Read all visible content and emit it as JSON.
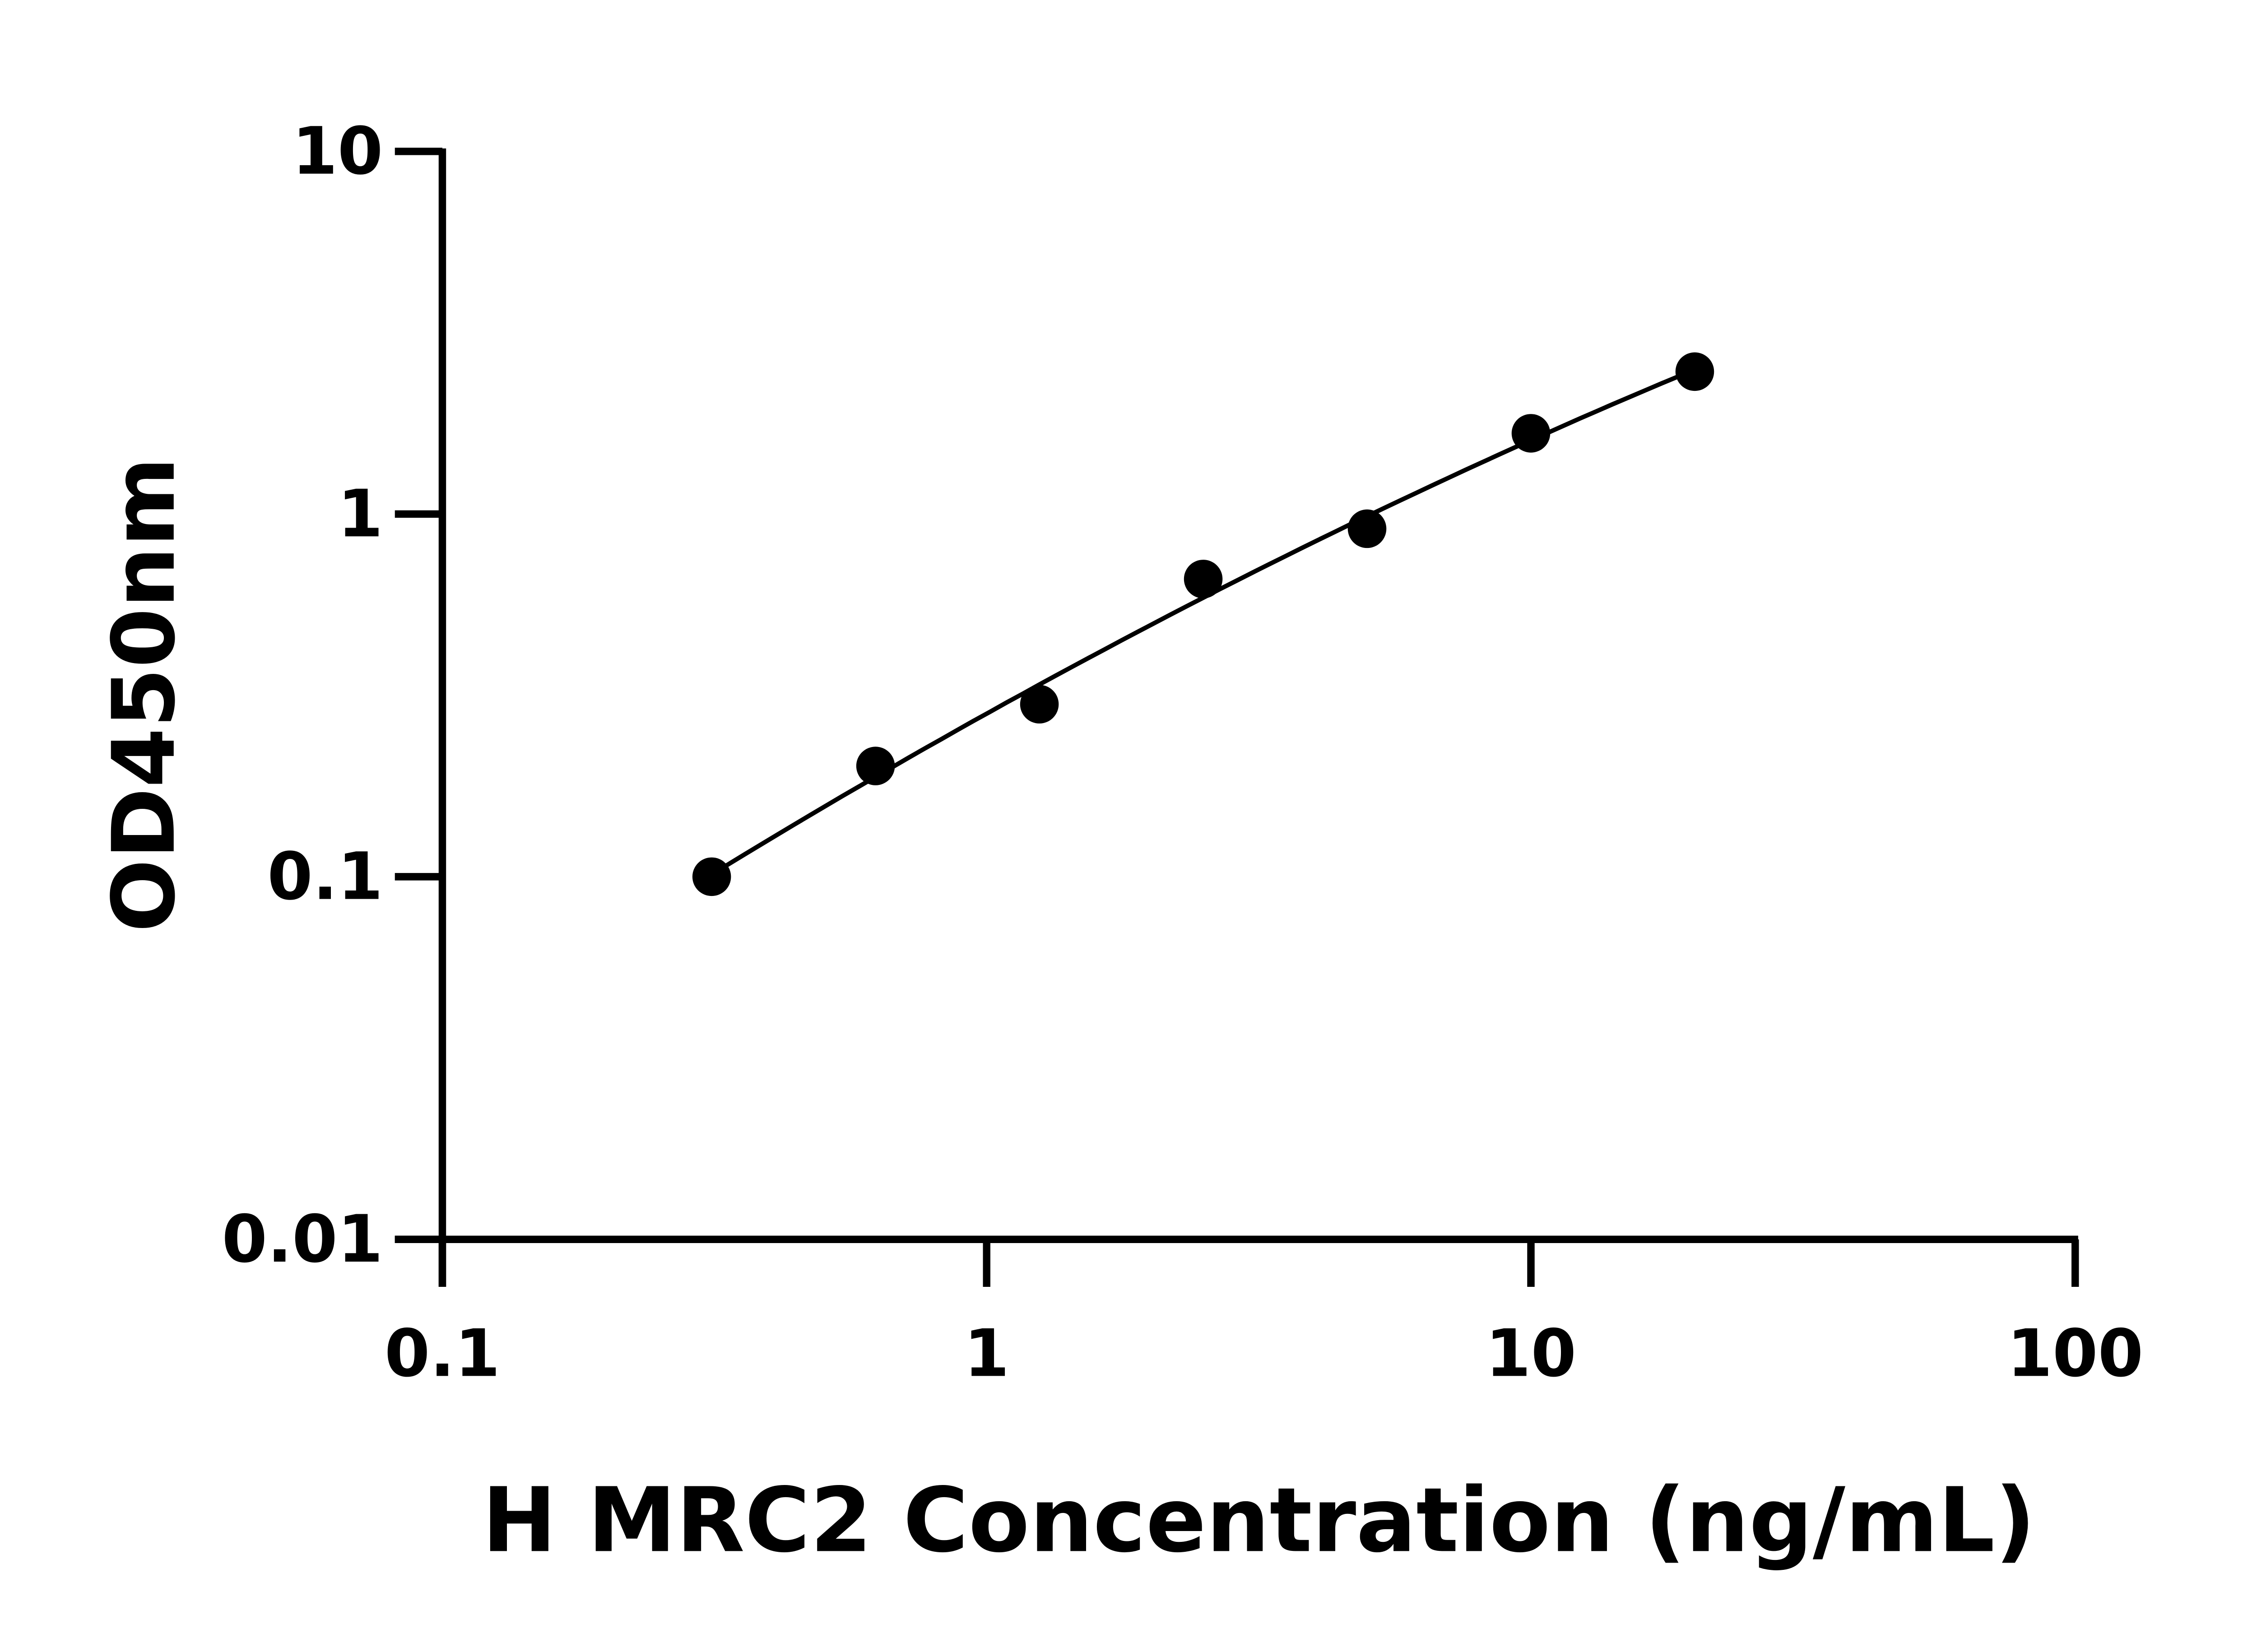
{
  "chart_data": {
    "type": "scatter",
    "title": "",
    "xlabel": "H MRC2 Concentration (ng/mL)",
    "ylabel": "OD450nm",
    "x_scale": "log",
    "y_scale": "log",
    "xlim": [
      0.1,
      100
    ],
    "ylim": [
      0.01,
      10
    ],
    "x_ticks": [
      "0.1",
      "1",
      "10",
      "100"
    ],
    "y_ticks": [
      "0.01",
      "0.1",
      "1",
      "10"
    ],
    "grid": false,
    "legend": "none",
    "fit_line": true,
    "colors": {
      "points": "#000000",
      "line": "#000000"
    },
    "series": [
      {
        "x": [
          0.3125,
          0.625,
          1.25,
          2.5,
          5,
          10,
          20
        ],
        "y": [
          0.1,
          0.202,
          0.299,
          0.662,
          0.911,
          1.67,
          2.47
        ]
      }
    ]
  }
}
